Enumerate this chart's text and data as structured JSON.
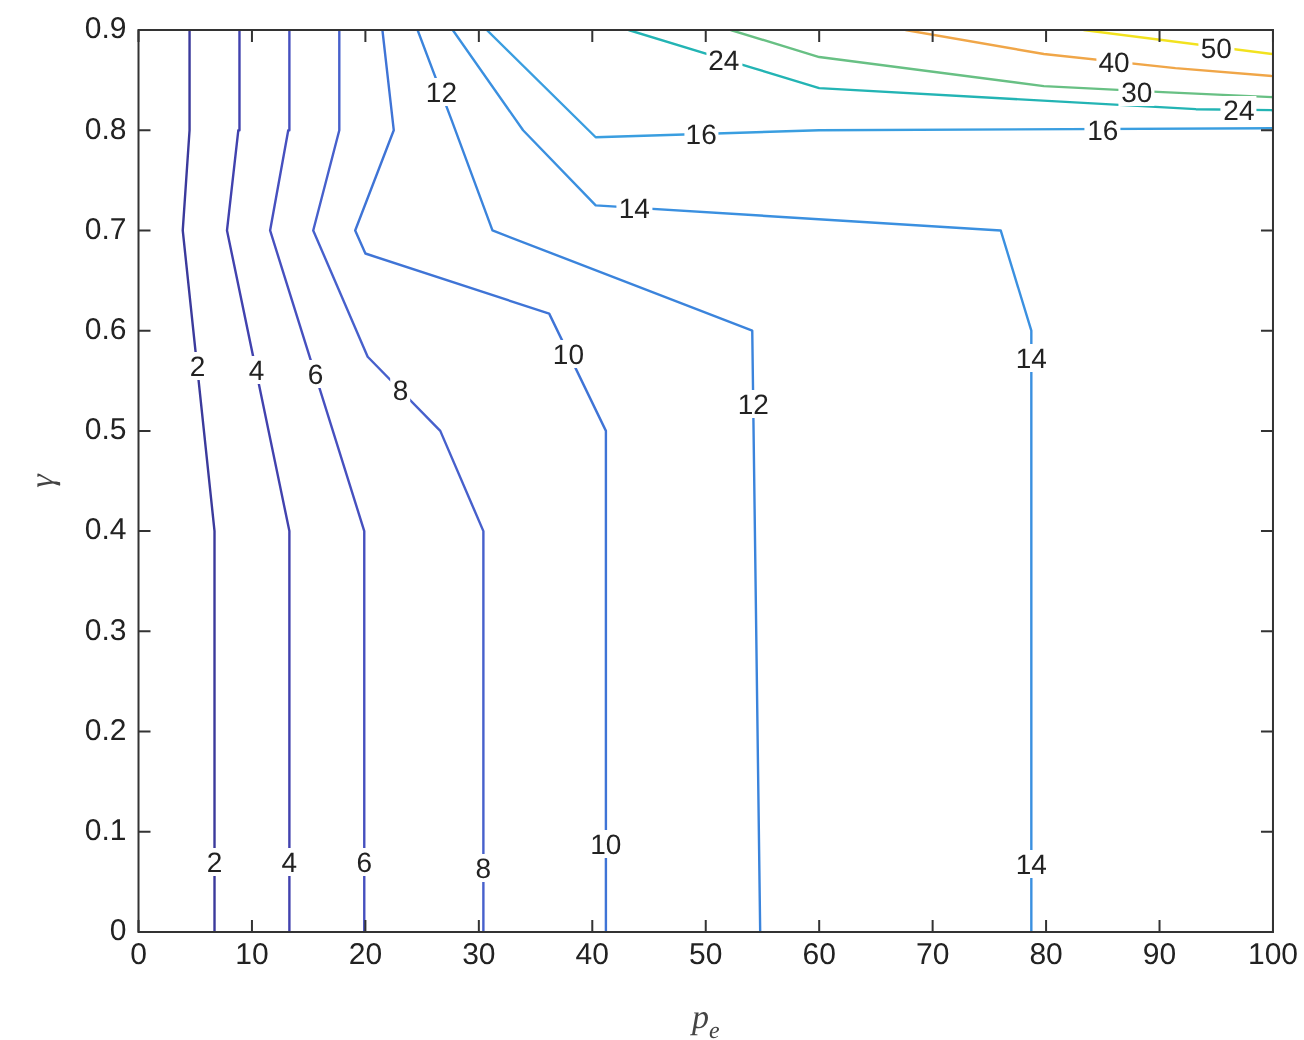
{
  "chart_data": {
    "type": "line",
    "xlabel": "p$_{e}$",
    "ylabel": "γ",
    "xlim": [
      0,
      100
    ],
    "ylim": [
      0,
      0.9
    ],
    "xticks": [
      0,
      10,
      20,
      30,
      40,
      50,
      60,
      70,
      80,
      90,
      100
    ],
    "yticks": [
      0,
      0.1,
      0.2,
      0.3,
      0.4,
      0.5,
      0.6,
      0.7,
      0.8,
      0.9
    ],
    "legend": false,
    "series": [
      {
        "color": "#3b3a9c",
        "x": [
          6.7,
          6.7,
          3.9,
          4.5,
          4.5
        ],
        "values": [
          0,
          0.4,
          0.7,
          0.8,
          0.9
        ]
      },
      {
        "color": "#4142ae",
        "x": [
          13.3,
          13.3,
          7.8,
          8.8,
          8.9
        ],
        "values": [
          0,
          0.4,
          0.7,
          0.8,
          0.9
        ]
      },
      {
        "color": "#4650bf",
        "x": [
          19.9,
          19.9,
          11.6,
          13.2,
          13.3
        ],
        "values": [
          0,
          0.4,
          0.7,
          0.8,
          0.9
        ]
      },
      {
        "color": "#4760cc",
        "x": [
          30.4,
          30.4,
          26.6,
          20.2,
          15.4,
          17.7,
          17.7
        ],
        "values": [
          0,
          0.4,
          0.5,
          0.574,
          0.7,
          0.8,
          0.9
        ]
      },
      {
        "color": "#3f74d6",
        "x": [
          41.2,
          41.2,
          36.2,
          20.0,
          19.1,
          22.5,
          21.5
        ],
        "values": [
          0,
          0.5,
          0.617,
          0.677,
          0.7,
          0.8,
          0.9
        ]
      },
      {
        "color": "#3b84dc",
        "x": [
          54.8,
          54.1,
          31.2,
          27.6,
          24.6
        ],
        "values": [
          0,
          0.6,
          0.7,
          0.81,
          0.9
        ]
      },
      {
        "color": "#3b90e0",
        "x": [
          78.7,
          78.7,
          76.0,
          40.3,
          33.9,
          27.7
        ],
        "values": [
          0,
          0.6,
          0.7,
          0.725,
          0.8,
          0.9
        ]
      },
      {
        "color": "#3a9ee0",
        "x": [
          100,
          60.0,
          40.3,
          30.7
        ],
        "values": [
          0.802,
          0.8,
          0.793,
          0.9
        ]
      },
      {
        "color": "#23b4b4",
        "x": [
          43.2,
          54.2,
          60.0,
          93.2,
          100
        ],
        "values": [
          0.9,
          0.862,
          0.842,
          0.821,
          0.82
        ]
      },
      {
        "color": "#68c084",
        "x": [
          52.2,
          60.0,
          79.8,
          90.3,
          100
        ],
        "values": [
          0.9,
          0.873,
          0.844,
          0.838,
          0.833
        ]
      },
      {
        "color": "#f0a648",
        "x": [
          67.6,
          79.8,
          91.4,
          100
        ],
        "values": [
          0.9,
          0.876,
          0.862,
          0.854
        ]
      },
      {
        "color": "#f2e21e",
        "x": [
          83.3,
          100
        ],
        "values": [
          0.9,
          0.876
        ]
      }
    ],
    "annotations": [
      {
        "text": "2",
        "x": 6.7,
        "y": 0.07
      },
      {
        "text": "2",
        "x": 5.2,
        "y": 0.565
      },
      {
        "text": "4",
        "x": 13.3,
        "y": 0.07
      },
      {
        "text": "4",
        "x": 10.4,
        "y": 0.56
      },
      {
        "text": "6",
        "x": 19.9,
        "y": 0.07
      },
      {
        "text": "6",
        "x": 15.6,
        "y": 0.557
      },
      {
        "text": "8",
        "x": 30.4,
        "y": 0.064
      },
      {
        "text": "8",
        "x": 23.1,
        "y": 0.54
      },
      {
        "text": "10",
        "x": 41.2,
        "y": 0.088
      },
      {
        "text": "10",
        "x": 37.9,
        "y": 0.577
      },
      {
        "text": "12",
        "x": 54.2,
        "y": 0.527
      },
      {
        "text": "12",
        "x": 26.7,
        "y": 0.838
      },
      {
        "text": "14",
        "x": 78.7,
        "y": 0.068
      },
      {
        "text": "14",
        "x": 78.7,
        "y": 0.573
      },
      {
        "text": "14",
        "x": 43.7,
        "y": 0.723
      },
      {
        "text": "16",
        "x": 49.6,
        "y": 0.796
      },
      {
        "text": "16",
        "x": 85,
        "y": 0.801
      },
      {
        "text": "24",
        "x": 51.6,
        "y": 0.871
      },
      {
        "text": "24",
        "x": 97,
        "y": 0.82
      },
      {
        "text": "30",
        "x": 88,
        "y": 0.839
      },
      {
        "text": "40",
        "x": 86,
        "y": 0.869
      },
      {
        "text": "50",
        "x": 95,
        "y": 0.883
      }
    ]
  }
}
